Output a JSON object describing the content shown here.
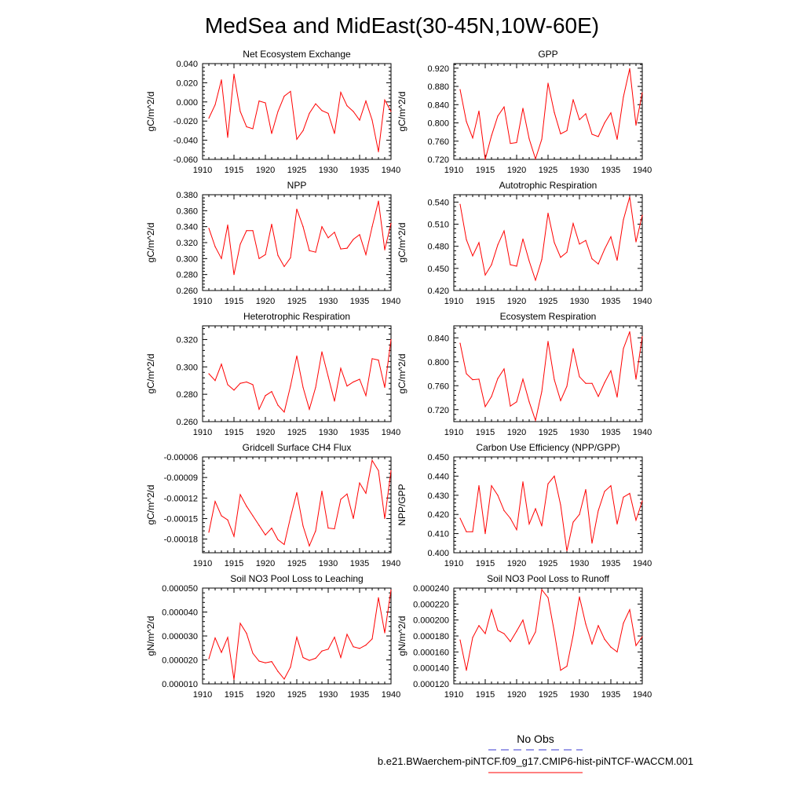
{
  "title": "MedSea and MidEast(30-45N,10W-60E)",
  "legend": {
    "obs_label": "No Obs",
    "run_label": "b.e21.BWaerchem-piNTCF.f09_g17.CMIP6-hist-piNTCF-WACCM.001",
    "obs_color": "#3a3ad0",
    "run_color": "#ff0000"
  },
  "chart_data": [
    {
      "type": "line",
      "title": "Net Ecosystem Exchange",
      "ylabel": "gC/m^2/d",
      "xlim": [
        1910,
        1940
      ],
      "ylim": [
        -0.06,
        0.04
      ],
      "xticks": [
        "1910",
        "1915",
        "1920",
        "1925",
        "1930",
        "1935",
        "1940"
      ],
      "yticks": [
        "0.040",
        "0.020",
        "0.000",
        "-0.020",
        "-0.040",
        "-0.060"
      ],
      "ytick_values": [
        0.04,
        0.02,
        0.0,
        -0.02,
        -0.04,
        -0.06
      ],
      "x": [
        1911,
        1912,
        1913,
        1914,
        1915,
        1916,
        1917,
        1918,
        1919,
        1920,
        1921,
        1922,
        1923,
        1924,
        1925,
        1926,
        1927,
        1928,
        1929,
        1930,
        1931,
        1932,
        1933,
        1934,
        1935,
        1936,
        1937,
        1938,
        1939,
        1940
      ],
      "values": [
        -0.017,
        -0.003,
        0.023,
        -0.037,
        0.029,
        -0.01,
        -0.026,
        -0.028,
        0.001,
        -0.001,
        -0.033,
        -0.01,
        0.006,
        0.011,
        -0.039,
        -0.03,
        -0.012,
        -0.002,
        -0.009,
        -0.012,
        -0.033,
        0.01,
        -0.004,
        -0.01,
        -0.019,
        0.001,
        -0.019,
        -0.052,
        0.002,
        -0.01
      ]
    },
    {
      "type": "line",
      "title": "GPP",
      "ylabel": "gC/m^2/d",
      "xlim": [
        1910,
        1940
      ],
      "ylim": [
        0.72,
        0.93
      ],
      "xticks": [
        "1910",
        "1915",
        "1920",
        "1925",
        "1930",
        "1935",
        "1940"
      ],
      "yticks": [
        "0.920",
        "0.880",
        "0.840",
        "0.800",
        "0.760",
        "0.720"
      ],
      "ytick_values": [
        0.92,
        0.88,
        0.84,
        0.8,
        0.76,
        0.72
      ],
      "x": [
        1911,
        1912,
        1913,
        1914,
        1915,
        1916,
        1917,
        1918,
        1919,
        1920,
        1921,
        1922,
        1923,
        1924,
        1925,
        1926,
        1927,
        1928,
        1929,
        1930,
        1931,
        1932,
        1933,
        1934,
        1935,
        1936,
        1937,
        1938,
        1939,
        1940
      ],
      "values": [
        0.873,
        0.803,
        0.767,
        0.826,
        0.72,
        0.772,
        0.815,
        0.835,
        0.755,
        0.757,
        0.832,
        0.765,
        0.721,
        0.764,
        0.887,
        0.823,
        0.776,
        0.783,
        0.851,
        0.807,
        0.82,
        0.775,
        0.77,
        0.8,
        0.822,
        0.764,
        0.857,
        0.919,
        0.795,
        0.866
      ]
    },
    {
      "type": "line",
      "title": "NPP",
      "ylabel": "gC/m^2/d",
      "xlim": [
        1910,
        1940
      ],
      "ylim": [
        0.26,
        0.38
      ],
      "xticks": [
        "1910",
        "1915",
        "1920",
        "1925",
        "1930",
        "1935",
        "1940"
      ],
      "yticks": [
        "0.380",
        "0.360",
        "0.340",
        "0.320",
        "0.300",
        "0.280",
        "0.260"
      ],
      "ytick_values": [
        0.38,
        0.36,
        0.34,
        0.32,
        0.3,
        0.28,
        0.26
      ],
      "x": [
        1911,
        1912,
        1913,
        1914,
        1915,
        1916,
        1917,
        1918,
        1919,
        1920,
        1921,
        1922,
        1923,
        1924,
        1925,
        1926,
        1927,
        1928,
        1929,
        1930,
        1931,
        1932,
        1933,
        1934,
        1935,
        1936,
        1937,
        1938,
        1939,
        1940
      ],
      "values": [
        0.338,
        0.315,
        0.3,
        0.342,
        0.28,
        0.318,
        0.335,
        0.335,
        0.3,
        0.305,
        0.343,
        0.304,
        0.29,
        0.301,
        0.362,
        0.34,
        0.31,
        0.308,
        0.34,
        0.326,
        0.333,
        0.312,
        0.313,
        0.324,
        0.33,
        0.305,
        0.34,
        0.372,
        0.311,
        0.344
      ]
    },
    {
      "type": "line",
      "title": "Autotrophic Respiration",
      "ylabel": "gC/m^2/d",
      "xlim": [
        1910,
        1940
      ],
      "ylim": [
        0.42,
        0.55
      ],
      "xticks": [
        "1910",
        "1915",
        "1920",
        "1925",
        "1930",
        "1935",
        "1940"
      ],
      "yticks": [
        "0.540",
        "0.510",
        "0.480",
        "0.450",
        "0.420"
      ],
      "ytick_values": [
        0.54,
        0.51,
        0.48,
        0.45,
        0.42
      ],
      "x": [
        1911,
        1912,
        1913,
        1914,
        1915,
        1916,
        1917,
        1918,
        1919,
        1920,
        1921,
        1922,
        1923,
        1924,
        1925,
        1926,
        1927,
        1928,
        1929,
        1930,
        1931,
        1932,
        1933,
        1934,
        1935,
        1936,
        1937,
        1938,
        1939,
        1940
      ],
      "values": [
        0.537,
        0.489,
        0.467,
        0.485,
        0.441,
        0.455,
        0.482,
        0.501,
        0.455,
        0.453,
        0.49,
        0.46,
        0.434,
        0.462,
        0.525,
        0.485,
        0.465,
        0.472,
        0.511,
        0.483,
        0.488,
        0.463,
        0.456,
        0.476,
        0.493,
        0.461,
        0.516,
        0.547,
        0.486,
        0.522
      ]
    },
    {
      "type": "line",
      "title": "Heterotrophic Respiration",
      "ylabel": "gC/m^2/d",
      "xlim": [
        1910,
        1940
      ],
      "ylim": [
        0.26,
        0.33
      ],
      "xticks": [
        "1910",
        "1915",
        "1920",
        "1925",
        "1930",
        "1935",
        "1940"
      ],
      "yticks": [
        "0.320",
        "0.300",
        "0.280",
        "0.260"
      ],
      "ytick_values": [
        0.32,
        0.3,
        0.28,
        0.26
      ],
      "x": [
        1911,
        1912,
        1913,
        1914,
        1915,
        1916,
        1917,
        1918,
        1919,
        1920,
        1921,
        1922,
        1923,
        1924,
        1925,
        1926,
        1927,
        1928,
        1929,
        1930,
        1931,
        1932,
        1933,
        1934,
        1935,
        1936,
        1937,
        1938,
        1939,
        1940
      ],
      "values": [
        0.295,
        0.29,
        0.302,
        0.287,
        0.283,
        0.288,
        0.289,
        0.287,
        0.269,
        0.279,
        0.282,
        0.272,
        0.267,
        0.286,
        0.308,
        0.285,
        0.269,
        0.285,
        0.311,
        0.293,
        0.275,
        0.299,
        0.286,
        0.289,
        0.291,
        0.279,
        0.306,
        0.305,
        0.285,
        0.32
      ]
    },
    {
      "type": "line",
      "title": "Ecosystem Respiration",
      "ylabel": "gC/m^2/d",
      "xlim": [
        1910,
        1940
      ],
      "ylim": [
        0.7,
        0.86
      ],
      "xticks": [
        "1910",
        "1915",
        "1920",
        "1925",
        "1930",
        "1935",
        "1940"
      ],
      "yticks": [
        "0.840",
        "0.800",
        "0.760",
        "0.720"
      ],
      "ytick_values": [
        0.84,
        0.8,
        0.76,
        0.72
      ],
      "x": [
        1911,
        1912,
        1913,
        1914,
        1915,
        1916,
        1917,
        1918,
        1919,
        1920,
        1921,
        1922,
        1923,
        1924,
        1925,
        1926,
        1927,
        1928,
        1929,
        1930,
        1931,
        1932,
        1933,
        1934,
        1935,
        1936,
        1937,
        1938,
        1939,
        1940
      ],
      "values": [
        0.831,
        0.78,
        0.77,
        0.771,
        0.725,
        0.742,
        0.772,
        0.788,
        0.726,
        0.733,
        0.771,
        0.733,
        0.702,
        0.75,
        0.834,
        0.77,
        0.735,
        0.759,
        0.822,
        0.775,
        0.764,
        0.764,
        0.742,
        0.765,
        0.785,
        0.741,
        0.822,
        0.85,
        0.771,
        0.842
      ]
    },
    {
      "type": "line",
      "title": "Gridcell Surface CH4 Flux",
      "ylabel": "gC/m^2/d",
      "xlim": [
        1910,
        1940
      ],
      "ylim": [
        -0.0002,
        -6e-05
      ],
      "xticks": [
        "1910",
        "1915",
        "1920",
        "1925",
        "1930",
        "1935",
        "1940"
      ],
      "yticks": [
        "-0.00006",
        "-0.00009",
        "-0.00012",
        "-0.00015",
        "-0.00018"
      ],
      "ytick_values": [
        -6e-05,
        -9e-05,
        -0.00012,
        -0.00015,
        -0.00018
      ],
      "x": [
        1911,
        1912,
        1913,
        1914,
        1915,
        1916,
        1917,
        1918,
        1919,
        1920,
        1921,
        1922,
        1923,
        1924,
        1925,
        1926,
        1927,
        1928,
        1929,
        1930,
        1931,
        1932,
        1933,
        1934,
        1935,
        1936,
        1937,
        1938,
        1939,
        1940
      ],
      "values": [
        -0.00017,
        -0.000125,
        -0.000146,
        -0.000152,
        -0.000176,
        -0.000115,
        -0.000132,
        -0.000146,
        -0.00016,
        -0.000174,
        -0.000164,
        -0.000181,
        -0.000188,
        -0.000148,
        -0.000112,
        -0.000161,
        -0.00019,
        -0.000168,
        -0.00011,
        -0.000164,
        -0.000165,
        -0.000122,
        -0.000114,
        -0.00015,
        -9.8e-05,
        -0.000113,
        -6.5e-05,
        -8e-05,
        -0.00015,
        -8e-05
      ]
    },
    {
      "type": "line",
      "title": "Carbon Use Efficiency (NPP/GPP)",
      "ylabel": "NPP/GPP",
      "xlim": [
        1910,
        1940
      ],
      "ylim": [
        0.4,
        0.45
      ],
      "xticks": [
        "1910",
        "1915",
        "1920",
        "1925",
        "1930",
        "1935",
        "1940"
      ],
      "yticks": [
        "0.450",
        "0.440",
        "0.430",
        "0.420",
        "0.410",
        "0.400"
      ],
      "ytick_values": [
        0.45,
        0.44,
        0.43,
        0.42,
        0.41,
        0.4
      ],
      "x": [
        1911,
        1912,
        1913,
        1914,
        1915,
        1916,
        1917,
        1918,
        1919,
        1920,
        1921,
        1922,
        1923,
        1924,
        1925,
        1926,
        1927,
        1928,
        1929,
        1930,
        1931,
        1932,
        1933,
        1934,
        1935,
        1936,
        1937,
        1938,
        1939,
        1940
      ],
      "values": [
        0.418,
        0.411,
        0.411,
        0.435,
        0.41,
        0.435,
        0.43,
        0.422,
        0.418,
        0.412,
        0.437,
        0.415,
        0.423,
        0.414,
        0.436,
        0.44,
        0.425,
        0.401,
        0.416,
        0.42,
        0.433,
        0.405,
        0.422,
        0.432,
        0.435,
        0.415,
        0.429,
        0.431,
        0.417,
        0.427
      ]
    },
    {
      "type": "line",
      "title": "Soil NO3 Pool Loss to Leaching",
      "ylabel": "gN/m^2/d",
      "xlim": [
        1910,
        1940
      ],
      "ylim": [
        1e-05,
        5e-05
      ],
      "xticks": [
        "1910",
        "1915",
        "1920",
        "1925",
        "1930",
        "1935",
        "1940"
      ],
      "yticks": [
        "0.000050",
        "0.000040",
        "0.000030",
        "0.000020",
        "0.000010"
      ],
      "ytick_values": [
        5e-05,
        4e-05,
        3e-05,
        2e-05,
        1e-05
      ],
      "x": [
        1911,
        1912,
        1913,
        1914,
        1915,
        1916,
        1917,
        1918,
        1919,
        1920,
        1921,
        1922,
        1923,
        1924,
        1925,
        1926,
        1927,
        1928,
        1929,
        1930,
        1931,
        1932,
        1933,
        1934,
        1935,
        1936,
        1937,
        1938,
        1939,
        1940
      ],
      "values": [
        2.05e-05,
        2.92e-05,
        2.31e-05,
        2.94e-05,
        1.18e-05,
        3.53e-05,
        3.11e-05,
        2.28e-05,
        1.95e-05,
        1.88e-05,
        1.93e-05,
        1.52e-05,
        1.2e-05,
        1.7e-05,
        2.95e-05,
        2.1e-05,
        1.98e-05,
        2.07e-05,
        2.37e-05,
        2.45e-05,
        2.95e-05,
        2.1e-05,
        3.07e-05,
        2.55e-05,
        2.48e-05,
        2.62e-05,
        2.88e-05,
        4.6e-05,
        3.13e-05,
        4.92e-05
      ]
    },
    {
      "type": "line",
      "title": "Soil NO3 Pool Loss to Runoff",
      "ylabel": "gN/m^2/d",
      "xlim": [
        1910,
        1940
      ],
      "ylim": [
        0.00012,
        0.00024
      ],
      "xticks": [
        "1910",
        "1915",
        "1920",
        "1925",
        "1930",
        "1935",
        "1940"
      ],
      "yticks": [
        "0.000240",
        "0.000220",
        "0.000200",
        "0.000180",
        "0.000160",
        "0.000140",
        "0.000120"
      ],
      "ytick_values": [
        0.00024,
        0.00022,
        0.0002,
        0.00018,
        0.00016,
        0.00014,
        0.00012
      ],
      "x": [
        1911,
        1912,
        1913,
        1914,
        1915,
        1916,
        1917,
        1918,
        1919,
        1920,
        1921,
        1922,
        1923,
        1924,
        1925,
        1926,
        1927,
        1928,
        1929,
        1930,
        1931,
        1932,
        1933,
        1934,
        1935,
        1936,
        1937,
        1938,
        1939,
        1940
      ],
      "values": [
        0.000175,
        0.000137,
        0.000178,
        0.000193,
        0.000183,
        0.000213,
        0.000187,
        0.000183,
        0.000173,
        0.000186,
        0.0002,
        0.00017,
        0.000185,
        0.000238,
        0.000228,
        0.000185,
        0.000137,
        0.000142,
        0.000181,
        0.000229,
        0.000195,
        0.00017,
        0.000193,
        0.000176,
        0.000166,
        0.00016,
        0.000196,
        0.000213,
        0.000168,
        0.000179
      ]
    }
  ]
}
